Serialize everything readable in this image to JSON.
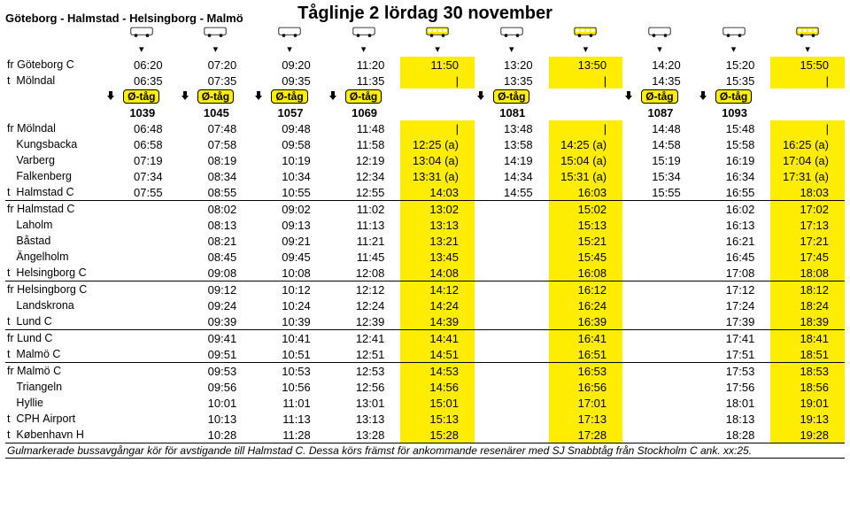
{
  "title": "Tåglinje 2 lördag 30 november",
  "subtitle": "Göteborg - Halmstad - Helsingborg - Malmö",
  "badge_label": "Ø-tåg",
  "highlight_columns": [
    5,
    7,
    10
  ],
  "badge_columns": [
    1,
    2,
    3,
    4,
    6,
    8,
    9
  ],
  "train_numbers": {
    "1": "1039",
    "2": "1045",
    "3": "1057",
    "4": "1069",
    "6": "1081",
    "8": "1087",
    "9": "1093"
  },
  "icon_row": [
    "bus",
    "bus",
    "bus",
    "bus",
    "bus",
    "bus",
    "bus",
    "bus",
    "bus",
    "bus"
  ],
  "tick_row": [
    "↓",
    "↓",
    "↓",
    "↓",
    "↓",
    "↓",
    "↓",
    "↓",
    "↓",
    "↓"
  ],
  "rows": [
    {
      "station": "fr Göteborg C",
      "t": [
        "06:20",
        "07:20",
        "09:20",
        "11:20",
        "11:50",
        "13:20",
        "13:50",
        "14:20",
        "15:20",
        "15:50"
      ]
    },
    {
      "station": "t  Mölndal",
      "t": [
        "06:35",
        "07:35",
        "09:35",
        "11:35",
        "|",
        "13:35",
        "|",
        "14:35",
        "15:35",
        "|"
      ]
    },
    {
      "badgerow": true
    },
    {
      "numrow": true
    },
    {
      "station": "fr Mölndal",
      "t": [
        "06:48",
        "07:48",
        "09:48",
        "11:48",
        "|",
        "13:48",
        "|",
        "14:48",
        "15:48",
        "|"
      ]
    },
    {
      "station": "   Kungsbacka",
      "t": [
        "06:58",
        "07:58",
        "09:58",
        "11:58",
        "12:25 (a)",
        "13:58",
        "14:25 (a)",
        "14:58",
        "15:58",
        "16:25 (a)"
      ]
    },
    {
      "station": "   Varberg",
      "t": [
        "07:19",
        "08:19",
        "10:19",
        "12:19",
        "13:04 (a)",
        "14:19",
        "15:04 (a)",
        "15:19",
        "16:19",
        "17:04 (a)"
      ]
    },
    {
      "station": "   Falkenberg",
      "t": [
        "07:34",
        "08:34",
        "10:34",
        "12:34",
        "13:31 (a)",
        "14:34",
        "15:31 (a)",
        "15:34",
        "16:34",
        "17:31 (a)"
      ]
    },
    {
      "station": "t  Halmstad C",
      "t": [
        "07:55",
        "08:55",
        "10:55",
        "12:55",
        "14:03",
        "14:55",
        "16:03",
        "15:55",
        "16:55",
        "18:03"
      ]
    },
    {
      "sep": true
    },
    {
      "station": "fr Halmstad C",
      "t": [
        "",
        "08:02",
        "09:02",
        "11:02",
        "13:02",
        "",
        "15:02",
        "",
        "16:02",
        "17:02"
      ]
    },
    {
      "station": "   Laholm",
      "t": [
        "",
        "08:13",
        "09:13",
        "11:13",
        "13:13",
        "",
        "15:13",
        "",
        "16:13",
        "17:13"
      ]
    },
    {
      "station": "   Båstad",
      "t": [
        "",
        "08:21",
        "09:21",
        "11:21",
        "13:21",
        "",
        "15:21",
        "",
        "16:21",
        "17:21"
      ]
    },
    {
      "station": "   Ängelholm",
      "t": [
        "",
        "08:45",
        "09:45",
        "11:45",
        "13:45",
        "",
        "15:45",
        "",
        "16:45",
        "17:45"
      ]
    },
    {
      "station": "t  Helsingborg C",
      "t": [
        "",
        "09:08",
        "10:08",
        "12:08",
        "14:08",
        "",
        "16:08",
        "",
        "17:08",
        "18:08"
      ]
    },
    {
      "sep": true
    },
    {
      "station": "fr Helsingborg C",
      "t": [
        "",
        "09:12",
        "10:12",
        "12:12",
        "14:12",
        "",
        "16:12",
        "",
        "17:12",
        "18:12"
      ]
    },
    {
      "station": "   Landskrona",
      "t": [
        "",
        "09:24",
        "10:24",
        "12:24",
        "14:24",
        "",
        "16:24",
        "",
        "17:24",
        "18:24"
      ]
    },
    {
      "station": "t  Lund C",
      "t": [
        "",
        "09:39",
        "10:39",
        "12:39",
        "14:39",
        "",
        "16:39",
        "",
        "17:39",
        "18:39"
      ]
    },
    {
      "sep": true
    },
    {
      "station": "fr Lund C",
      "t": [
        "",
        "09:41",
        "10:41",
        "12:41",
        "14:41",
        "",
        "16:41",
        "",
        "17:41",
        "18:41"
      ]
    },
    {
      "station": "t  Malmö C",
      "t": [
        "",
        "09:51",
        "10:51",
        "12:51",
        "14:51",
        "",
        "16:51",
        "",
        "17:51",
        "18:51"
      ]
    },
    {
      "sep": true
    },
    {
      "station": "fr Malmö C",
      "t": [
        "",
        "09:53",
        "10:53",
        "12:53",
        "14:53",
        "",
        "16:53",
        "",
        "17:53",
        "18:53"
      ]
    },
    {
      "station": "   Triangeln",
      "t": [
        "",
        "09:56",
        "10:56",
        "12:56",
        "14:56",
        "",
        "16:56",
        "",
        "17:56",
        "18:56"
      ]
    },
    {
      "station": "   Hyllie",
      "t": [
        "",
        "10:01",
        "11:01",
        "13:01",
        "15:01",
        "",
        "17:01",
        "",
        "18:01",
        "19:01"
      ]
    },
    {
      "station": "t  CPH Airport",
      "t": [
        "",
        "10:13",
        "11:13",
        "13:13",
        "15:13",
        "",
        "17:13",
        "",
        "18:13",
        "19:13"
      ]
    },
    {
      "station": "t  København H",
      "t": [
        "",
        "10:28",
        "11:28",
        "13:28",
        "15:28",
        "",
        "17:28",
        "",
        "18:28",
        "19:28"
      ]
    }
  ],
  "footnote": "Gulmarkerade bussavgångar kör för avstigande till Halmstad C. Dessa körs främst för ankommande resenärer med SJ Snabbtåg från Stockholm C ank. xx:25."
}
